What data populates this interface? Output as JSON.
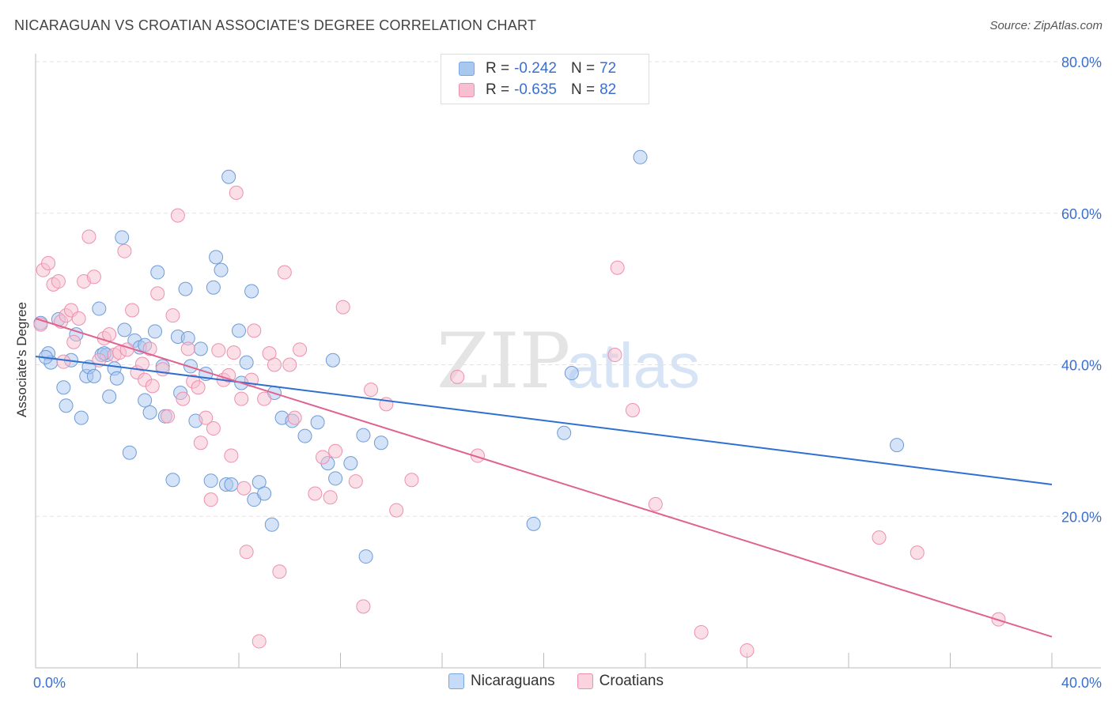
{
  "title": "NICARAGUAN VS CROATIAN ASSOCIATE'S DEGREE CORRELATION CHART",
  "source": "Source: ZipAtlas.com",
  "legend": {
    "rows": [
      {
        "r_label": "R =",
        "r_value": "-0.242",
        "n_label": "N =",
        "n_value": "72",
        "color": "#a9c8f0",
        "border": "#7aa6e0"
      },
      {
        "r_label": "R =",
        "r_value": "-0.635",
        "n_label": "N =",
        "n_value": "82",
        "color": "#f8bfd0",
        "border": "#ee8fb0"
      }
    ]
  },
  "bottom_legend": [
    {
      "label": "Nicaraguans",
      "color": "#c6dbf7",
      "border": "#7aa6e0"
    },
    {
      "label": "Croatians",
      "color": "#fbd3df",
      "border": "#ee8fb0"
    }
  ],
  "watermark": {
    "part1": "ZIP",
    "part2": "atlas"
  },
  "chart_data": {
    "type": "scatter",
    "title": "NICARAGUAN VS CROATIAN ASSOCIATE'S DEGREE CORRELATION CHART",
    "xlabel": "",
    "ylabel": "Associate's Degree",
    "xlim": [
      0,
      40
    ],
    "ylim": [
      0,
      80
    ],
    "x_tick_labels": [
      "0.0%",
      "40.0%"
    ],
    "y_tick_labels": [
      "20.0%",
      "40.0%",
      "60.0%",
      "80.0%"
    ],
    "y_ticks": [
      20,
      40,
      60,
      80
    ],
    "series": [
      {
        "name": "Nicaraguans",
        "color": "#a9c8f0",
        "stroke": "#6f9bd8",
        "line_color": "#2f6fd0",
        "trend": [
          [
            0,
            41.1
          ],
          [
            40,
            24.2
          ]
        ],
        "points": [
          [
            0.2,
            45.5
          ],
          [
            0.5,
            41.5
          ],
          [
            0.6,
            40.3
          ],
          [
            0.9,
            46
          ],
          [
            1.1,
            37
          ],
          [
            1.2,
            34.6
          ],
          [
            1.4,
            40.6
          ],
          [
            1.6,
            44
          ],
          [
            1.8,
            33
          ],
          [
            2.0,
            38.5
          ],
          [
            2.1,
            39.7
          ],
          [
            2.3,
            38.5
          ],
          [
            2.5,
            47.4
          ],
          [
            2.6,
            41.3
          ],
          [
            2.8,
            41.3
          ],
          [
            2.9,
            35.8
          ],
          [
            3.1,
            39.5
          ],
          [
            3.2,
            38.2
          ],
          [
            3.4,
            56.8
          ],
          [
            3.5,
            44.6
          ],
          [
            3.7,
            28.4
          ],
          [
            3.9,
            43.2
          ],
          [
            4.1,
            42.3
          ],
          [
            4.3,
            35.3
          ],
          [
            4.5,
            33.7
          ],
          [
            4.7,
            44.4
          ],
          [
            4.8,
            52.2
          ],
          [
            5.0,
            39.8
          ],
          [
            5.1,
            33.2
          ],
          [
            5.4,
            24.8
          ],
          [
            5.6,
            43.7
          ],
          [
            5.7,
            36.3
          ],
          [
            5.9,
            50.0
          ],
          [
            6.0,
            43.5
          ],
          [
            6.1,
            39.8
          ],
          [
            6.3,
            32.6
          ],
          [
            6.5,
            42.1
          ],
          [
            6.7,
            38.8
          ],
          [
            6.9,
            24.7
          ],
          [
            7.0,
            50.2
          ],
          [
            7.1,
            54.2
          ],
          [
            7.3,
            52.5
          ],
          [
            7.5,
            24.2
          ],
          [
            7.6,
            64.8
          ],
          [
            7.7,
            24.2
          ],
          [
            8.0,
            44.5
          ],
          [
            8.1,
            37.6
          ],
          [
            8.3,
            40.3
          ],
          [
            8.5,
            49.7
          ],
          [
            8.6,
            22.2
          ],
          [
            8.8,
            24.5
          ],
          [
            9.0,
            23
          ],
          [
            9.3,
            18.9
          ],
          [
            9.4,
            36.3
          ],
          [
            9.7,
            33
          ],
          [
            10.1,
            32.6
          ],
          [
            10.6,
            30.6
          ],
          [
            11.1,
            32.4
          ],
          [
            11.5,
            27
          ],
          [
            11.7,
            40.6
          ],
          [
            11.8,
            25
          ],
          [
            12.4,
            27
          ],
          [
            12.9,
            30.7
          ],
          [
            13.0,
            14.7
          ],
          [
            13.6,
            29.7
          ],
          [
            19.6,
            19
          ],
          [
            20.8,
            31
          ],
          [
            21.1,
            38.9
          ],
          [
            23.8,
            67.4
          ],
          [
            33.9,
            29.4
          ],
          [
            0.4,
            41
          ],
          [
            2.7,
            41.5
          ],
          [
            4.3,
            42.6
          ]
        ]
      },
      {
        "name": "Croatians",
        "color": "#f8bfd0",
        "stroke": "#ee8fb0",
        "line_color": "#e0628f",
        "trend": [
          [
            0,
            46.1
          ],
          [
            40,
            4.1
          ]
        ],
        "points": [
          [
            0.2,
            45.3
          ],
          [
            0.3,
            52.5
          ],
          [
            0.5,
            53.4
          ],
          [
            0.7,
            50.6
          ],
          [
            0.9,
            51
          ],
          [
            1.0,
            45.7
          ],
          [
            1.2,
            46.5
          ],
          [
            1.4,
            47.2
          ],
          [
            1.5,
            43
          ],
          [
            1.7,
            46.1
          ],
          [
            1.9,
            51
          ],
          [
            2.1,
            56.9
          ],
          [
            2.3,
            51.6
          ],
          [
            2.5,
            40.6
          ],
          [
            2.7,
            43.5
          ],
          [
            2.9,
            44
          ],
          [
            3.1,
            41.3
          ],
          [
            3.3,
            41.6
          ],
          [
            3.5,
            55
          ],
          [
            3.6,
            42
          ],
          [
            3.8,
            47.2
          ],
          [
            4.0,
            39
          ],
          [
            4.2,
            40.1
          ],
          [
            4.3,
            38
          ],
          [
            4.5,
            42.1
          ],
          [
            4.6,
            37.2
          ],
          [
            4.8,
            49.4
          ],
          [
            5.0,
            39.4
          ],
          [
            5.2,
            33.2
          ],
          [
            5.4,
            46.5
          ],
          [
            5.6,
            59.7
          ],
          [
            5.8,
            35.5
          ],
          [
            6.0,
            42.1
          ],
          [
            6.2,
            37.8
          ],
          [
            6.4,
            37
          ],
          [
            6.5,
            29.7
          ],
          [
            6.7,
            33
          ],
          [
            6.9,
            22.2
          ],
          [
            7.0,
            31.6
          ],
          [
            7.2,
            41.9
          ],
          [
            7.4,
            38
          ],
          [
            7.6,
            38.6
          ],
          [
            7.7,
            28
          ],
          [
            7.8,
            41.6
          ],
          [
            7.9,
            62.7
          ],
          [
            8.1,
            35.5
          ],
          [
            8.2,
            23.7
          ],
          [
            8.3,
            15.3
          ],
          [
            8.5,
            38
          ],
          [
            8.6,
            44.5
          ],
          [
            8.8,
            3.5
          ],
          [
            9.0,
            35.5
          ],
          [
            9.2,
            41.5
          ],
          [
            9.4,
            40
          ],
          [
            9.6,
            12.7
          ],
          [
            9.8,
            52.2
          ],
          [
            10.0,
            40
          ],
          [
            10.2,
            33
          ],
          [
            10.4,
            42
          ],
          [
            11.0,
            23
          ],
          [
            11.3,
            27.8
          ],
          [
            11.6,
            22.5
          ],
          [
            11.8,
            28.6
          ],
          [
            12.1,
            47.6
          ],
          [
            12.6,
            24.6
          ],
          [
            12.9,
            8.1
          ],
          [
            13.2,
            36.7
          ],
          [
            13.8,
            34.8
          ],
          [
            14.2,
            20.8
          ],
          [
            14.8,
            24.8
          ],
          [
            16.6,
            38.4
          ],
          [
            17.4,
            28
          ],
          [
            22.8,
            41.3
          ],
          [
            22.9,
            52.8
          ],
          [
            23.5,
            34
          ],
          [
            24.4,
            21.6
          ],
          [
            26.2,
            4.7
          ],
          [
            28.0,
            2.3
          ],
          [
            33.2,
            17.2
          ],
          [
            34.7,
            15.2
          ],
          [
            37.9,
            6.4
          ],
          [
            1.1,
            40.4
          ]
        ]
      }
    ]
  }
}
